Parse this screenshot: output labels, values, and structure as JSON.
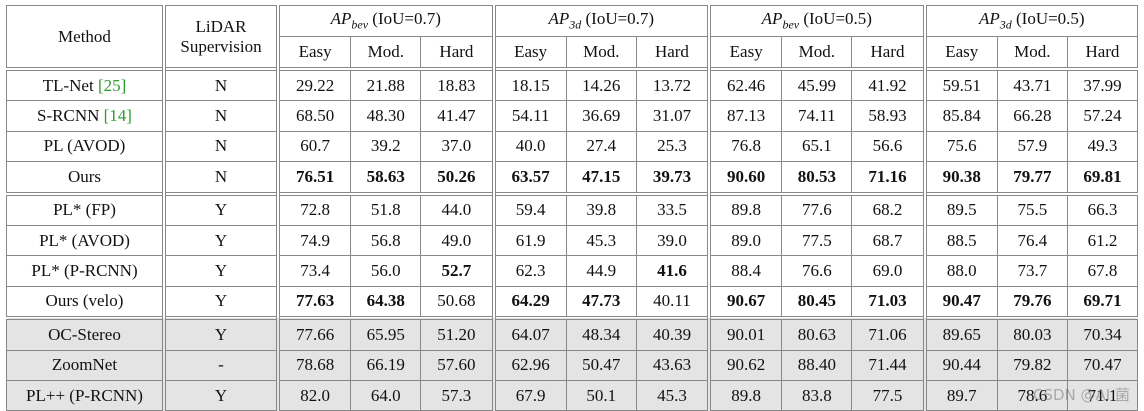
{
  "table": {
    "header": {
      "method": "Method",
      "lidar": [
        "LiDAR",
        "Supervision"
      ],
      "groups": [
        {
          "base": "AP",
          "sub": "bev",
          "iou": "(IoU=0.7)"
        },
        {
          "base": "AP",
          "sub": "3d",
          "iou": "(IoU=0.7)"
        },
        {
          "base": "AP",
          "sub": "bev",
          "iou": "(IoU=0.5)"
        },
        {
          "base": "AP",
          "sub": "3d",
          "iou": "(IoU=0.5)"
        }
      ],
      "subheaders": [
        "Easy",
        "Mod.",
        "Hard"
      ]
    },
    "sections": [
      {
        "shaded": false,
        "rows": [
          {
            "method": "TL-Net",
            "cite": "[25]",
            "lidar": "N",
            "values": [
              "29.22",
              "21.88",
              "18.83",
              "18.15",
              "14.26",
              "13.72",
              "62.46",
              "45.99",
              "41.92",
              "59.51",
              "43.71",
              "37.99"
            ],
            "bold": []
          },
          {
            "method": "S-RCNN",
            "cite": "[14]",
            "lidar": "N",
            "values": [
              "68.50",
              "48.30",
              "41.47",
              "54.11",
              "36.69",
              "31.07",
              "87.13",
              "74.11",
              "58.93",
              "85.84",
              "66.28",
              "57.24"
            ],
            "bold": []
          },
          {
            "method": "PL (AVOD)",
            "lidar": "N",
            "values": [
              "60.7",
              "39.2",
              "37.0",
              "40.0",
              "27.4",
              "25.3",
              "76.8",
              "65.1",
              "56.6",
              "75.6",
              "57.9",
              "49.3"
            ],
            "bold": []
          },
          {
            "method": "Ours",
            "lidar": "N",
            "values": [
              "76.51",
              "58.63",
              "50.26",
              "63.57",
              "47.15",
              "39.73",
              "90.60",
              "80.53",
              "71.16",
              "90.38",
              "79.77",
              "69.81"
            ],
            "bold": [
              0,
              1,
              2,
              3,
              4,
              5,
              6,
              7,
              8,
              9,
              10,
              11
            ]
          }
        ]
      },
      {
        "shaded": false,
        "rows": [
          {
            "method": "PL* (FP)",
            "lidar": "Y",
            "values": [
              "72.8",
              "51.8",
              "44.0",
              "59.4",
              "39.8",
              "33.5",
              "89.8",
              "77.6",
              "68.2",
              "89.5",
              "75.5",
              "66.3"
            ],
            "bold": []
          },
          {
            "method": "PL* (AVOD)",
            "lidar": "Y",
            "values": [
              "74.9",
              "56.8",
              "49.0",
              "61.9",
              "45.3",
              "39.0",
              "89.0",
              "77.5",
              "68.7",
              "88.5",
              "76.4",
              "61.2"
            ],
            "bold": []
          },
          {
            "method": "PL* (P-RCNN)",
            "lidar": "Y",
            "values": [
              "73.4",
              "56.0",
              "52.7",
              "62.3",
              "44.9",
              "41.6",
              "88.4",
              "76.6",
              "69.0",
              "88.0",
              "73.7",
              "67.8"
            ],
            "bold": [
              2,
              5
            ]
          },
          {
            "method": "Ours (velo)",
            "lidar": "Y",
            "values": [
              "77.63",
              "64.38",
              "50.68",
              "64.29",
              "47.73",
              "40.11",
              "90.67",
              "80.45",
              "71.03",
              "90.47",
              "79.76",
              "69.71"
            ],
            "bold": [
              0,
              1,
              3,
              4,
              6,
              7,
              8,
              9,
              10,
              11
            ]
          }
        ]
      },
      {
        "shaded": true,
        "rows": [
          {
            "method": "OC-Stereo",
            "lidar": "Y",
            "values": [
              "77.66",
              "65.95",
              "51.20",
              "64.07",
              "48.34",
              "40.39",
              "90.01",
              "80.63",
              "71.06",
              "89.65",
              "80.03",
              "70.34"
            ],
            "bold": []
          },
          {
            "method": "ZoomNet",
            "lidar": "-",
            "values": [
              "78.68",
              "66.19",
              "57.60",
              "62.96",
              "50.47",
              "43.63",
              "90.62",
              "88.40",
              "71.44",
              "90.44",
              "79.82",
              "70.47"
            ],
            "bold": []
          },
          {
            "method": "PL++ (P-RCNN)",
            "lidar": "Y",
            "values": [
              "82.0",
              "64.0",
              "57.3",
              "67.9",
              "50.1",
              "45.3",
              "89.8",
              "83.8",
              "77.5",
              "89.7",
              "78.6",
              "71.1"
            ],
            "bold": []
          }
        ]
      }
    ]
  },
  "watermark": "CSDN @AI 菌"
}
